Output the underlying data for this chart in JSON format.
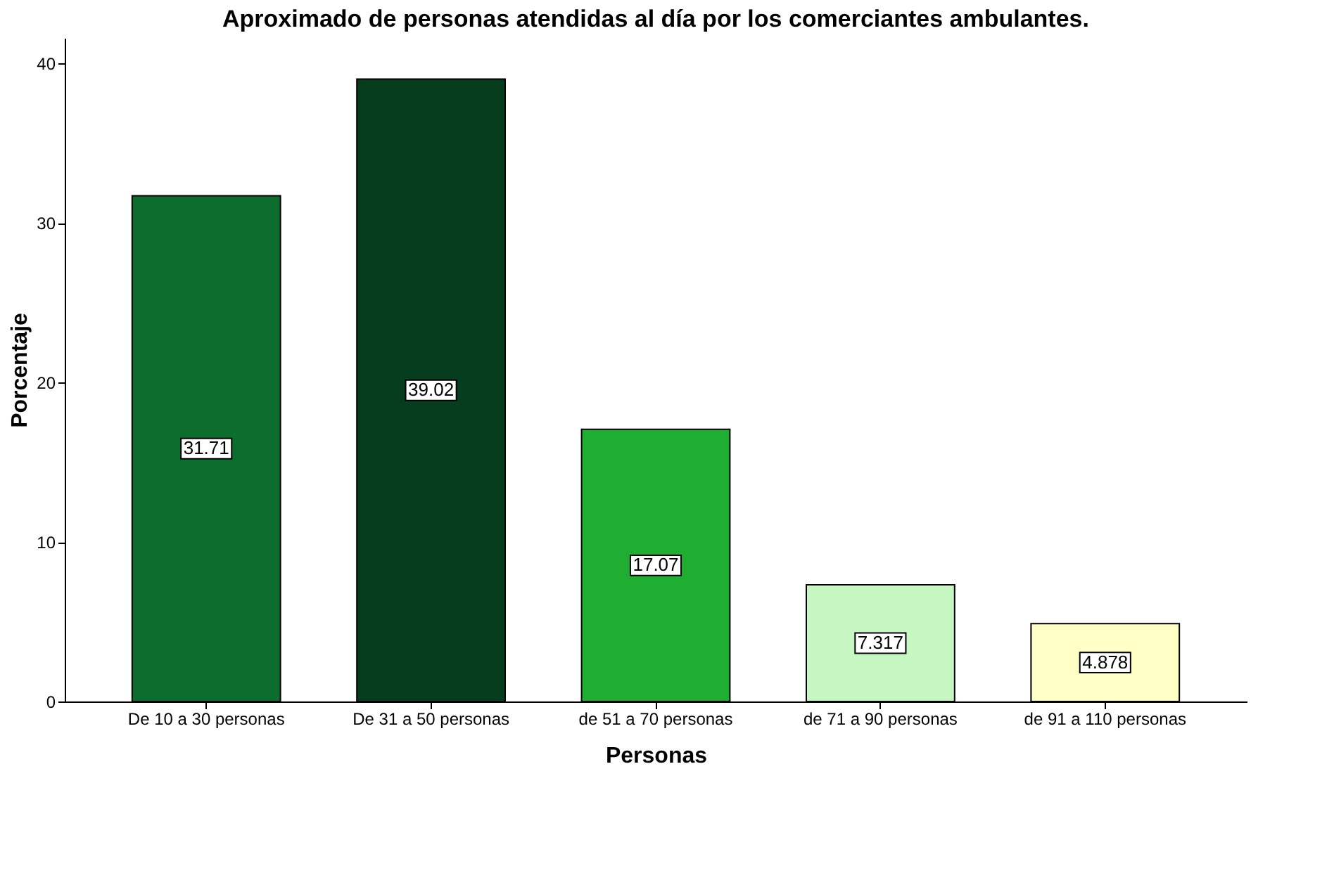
{
  "chart_data": {
    "type": "bar",
    "title": "Aproximado de personas atendidas al día por los comerciantes ambulantes.",
    "xlabel": "Personas",
    "ylabel": "Porcentaje",
    "categories": [
      "De 10 a 30 personas",
      "De 31 a 50 personas",
      "de 51 a 70 personas",
      "de 71 a 90 personas",
      "de 91 a 110 personas"
    ],
    "values": [
      31.71,
      39.02,
      17.07,
      7.317,
      4.878
    ],
    "colors": [
      "#0b6e2f",
      "#063d1e",
      "#1fae32",
      "#c6f7c2",
      "#ffffc6"
    ],
    "ylim": [
      0,
      41.6
    ],
    "yticks": [
      0,
      10,
      20,
      30,
      40
    ],
    "grid": false,
    "data_labels": true
  }
}
